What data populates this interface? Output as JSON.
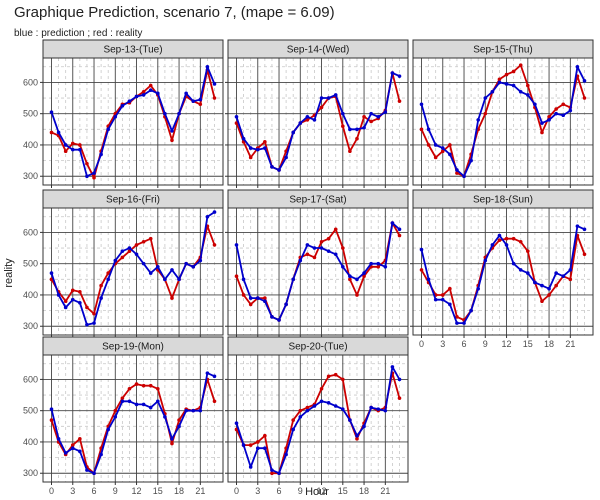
{
  "chart_data": {
    "type": "line",
    "title": "Graphique Prediction, scenario 7, (mape = 6.09)",
    "subtitle": "blue : prediction ; red : reality",
    "xlabel": "Hour",
    "ylabel": "reality",
    "xlim": [
      -1.2,
      24.2
    ],
    "ylim": [
      272,
      678
    ],
    "x_ticks": [
      0,
      3,
      6,
      9,
      12,
      15,
      18,
      21
    ],
    "y_ticks": [
      300,
      400,
      500,
      600
    ],
    "colors": {
      "prediction": "#0000cc",
      "reality": "#cc0000"
    },
    "hours": [
      0,
      1,
      2,
      3,
      4,
      5,
      6,
      7,
      8,
      9,
      10,
      11,
      12,
      13,
      14,
      15,
      16,
      17,
      18,
      19,
      20,
      21,
      22,
      23
    ],
    "panels": [
      {
        "label": "Sep-13-(Tue)",
        "series": [
          {
            "name": "prediction",
            "values": [
              505,
              440,
              400,
              385,
              385,
              300,
              310,
              370,
              450,
              490,
              525,
              540,
              555,
              560,
              575,
              565,
              500,
              445,
              500,
              565,
              540,
              545,
              650,
              595
            ]
          },
          {
            "name": "reality",
            "values": [
              440,
              430,
              380,
              405,
              400,
              340,
              295,
              380,
              460,
              500,
              530,
              535,
              555,
              570,
              590,
              560,
              490,
              415,
              500,
              555,
              540,
              530,
              640,
              550
            ]
          }
        ]
      },
      {
        "label": "Sep-14-(Wed)",
        "series": [
          {
            "name": "prediction",
            "values": [
              490,
              420,
              390,
              385,
              390,
              330,
              320,
              360,
              440,
              470,
              490,
              480,
              550,
              550,
              560,
              500,
              450,
              450,
              455,
              500,
              490,
              505,
              630,
              620
            ]
          },
          {
            "name": "reality",
            "values": [
              470,
              410,
              360,
              390,
              410,
              330,
              320,
              380,
              440,
              470,
              480,
              495,
              520,
              550,
              555,
              460,
              380,
              420,
              490,
              475,
              485,
              510,
              630,
              540
            ]
          }
        ]
      },
      {
        "label": "Sep-15-(Thu)",
        "series": [
          {
            "name": "prediction",
            "values": [
              530,
              450,
              400,
              390,
              370,
              320,
              300,
              350,
              480,
              550,
              570,
              600,
              595,
              590,
              570,
              560,
              530,
              470,
              480,
              500,
              495,
              510,
              650,
              605
            ]
          },
          {
            "name": "reality",
            "values": [
              450,
              400,
              360,
              380,
              400,
              310,
              300,
              370,
              450,
              500,
              570,
              610,
              625,
              635,
              655,
              590,
              520,
              440,
              490,
              515,
              530,
              520,
              620,
              550
            ]
          }
        ]
      },
      {
        "label": "Sep-16-(Fri)",
        "series": [
          {
            "name": "prediction",
            "values": [
              470,
              400,
              360,
              385,
              375,
              305,
              310,
              390,
              450,
              510,
              540,
              550,
              530,
              500,
              470,
              490,
              450,
              480,
              450,
              500,
              490,
              510,
              650,
              665
            ]
          },
          {
            "name": "reality",
            "values": [
              450,
              410,
              380,
              415,
              410,
              360,
              340,
              430,
              470,
              500,
              520,
              540,
              560,
              570,
              580,
              480,
              450,
              390,
              450,
              500,
              490,
              520,
              620,
              560
            ]
          }
        ]
      },
      {
        "label": "Sep-17-(Sat)",
        "series": [
          {
            "name": "prediction",
            "values": [
              560,
              450,
              390,
              390,
              380,
              330,
              320,
              370,
              450,
              510,
              560,
              550,
              550,
              540,
              530,
              490,
              460,
              450,
              470,
              500,
              500,
              490,
              630,
              610
            ]
          },
          {
            "name": "reality",
            "values": [
              460,
              400,
              370,
              390,
              390,
              330,
              320,
              370,
              450,
              520,
              530,
              520,
              570,
              580,
              610,
              550,
              450,
              400,
              460,
              490,
              490,
              510,
              630,
              590
            ]
          }
        ]
      },
      {
        "label": "Sep-18-(Sun)",
        "series": [
          {
            "name": "prediction",
            "values": [
              545,
              450,
              385,
              385,
              370,
              310,
              310,
              350,
              420,
              510,
              560,
              590,
              560,
              500,
              480,
              470,
              440,
              430,
              420,
              470,
              460,
              480,
              620,
              610
            ]
          },
          {
            "name": "reality",
            "values": [
              480,
              440,
              400,
              400,
              420,
              330,
              320,
              350,
              430,
              520,
              550,
              575,
              580,
              580,
              570,
              540,
              440,
              380,
              400,
              430,
              460,
              450,
              590,
              530
            ]
          }
        ]
      },
      {
        "label": "Sep-19-(Mon)",
        "series": [
          {
            "name": "prediction",
            "values": [
              505,
              410,
              365,
              380,
              370,
              310,
              300,
              360,
              440,
              480,
              530,
              530,
              520,
              520,
              510,
              530,
              480,
              410,
              450,
              500,
              500,
              500,
              620,
              610
            ]
          },
          {
            "name": "reality",
            "values": [
              470,
              400,
              360,
              390,
              410,
              320,
              300,
              380,
              450,
              500,
              540,
              570,
              585,
              580,
              580,
              570,
              490,
              395,
              470,
              505,
              500,
              510,
              600,
              530
            ]
          }
        ]
      },
      {
        "label": "Sep-20-(Tue)",
        "series": [
          {
            "name": "prediction",
            "values": [
              460,
              390,
              320,
              380,
              380,
              310,
              300,
              360,
              440,
              480,
              500,
              515,
              530,
              525,
              515,
              505,
              470,
              420,
              450,
              510,
              505,
              500,
              640,
              600
            ]
          },
          {
            "name": "reality",
            "values": [
              440,
              390,
              390,
              400,
              420,
              300,
              300,
              380,
              470,
              500,
              510,
              520,
              570,
              610,
              615,
              600,
              470,
              410,
              460,
              510,
              500,
              510,
              620,
              540
            ]
          }
        ]
      }
    ]
  }
}
